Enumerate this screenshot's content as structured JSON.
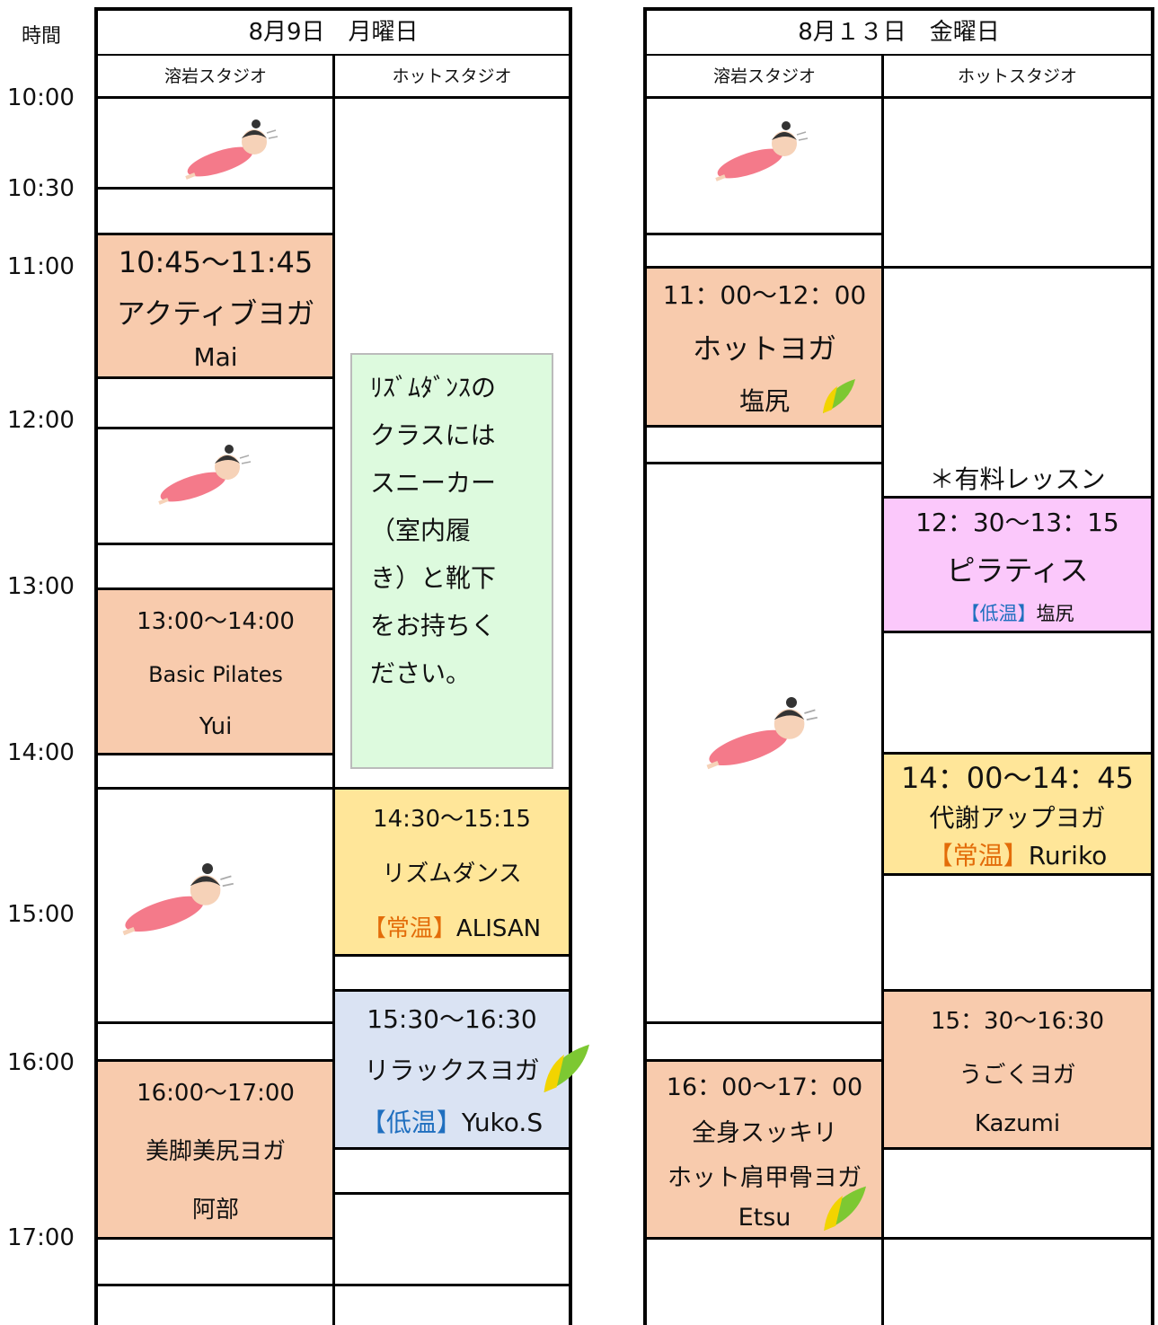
{
  "time_header": "時間",
  "times": [
    "10:00",
    "10:30",
    "11:00",
    "12:00",
    "13:00",
    "14:00",
    "15:00",
    "16:00",
    "17:00"
  ],
  "days": [
    {
      "title": "8月9日　月曜日",
      "studios": [
        "溶岩スタジオ",
        "ホットスタジオ"
      ],
      "lava": [
        {
          "time": "10:45～11:45",
          "name": "アクティブヨガ",
          "teacher": "Mai"
        },
        {
          "time": "13:00～14:00",
          "name": "Basic Pilates",
          "teacher": "Yui"
        },
        {
          "time": "16:00～17:00",
          "name": "美脚美尻ヨガ",
          "teacher": "阿部"
        }
      ],
      "hot": [
        {
          "time": "14:30～15:15",
          "name": "リズムダンス",
          "tag": "【常温】",
          "teacher": "ALISAN"
        },
        {
          "time": "15:30～16:30",
          "name": "リラックスヨガ",
          "tag": "【低温】",
          "teacher": "Yuko.S"
        }
      ],
      "note": [
        "ﾘｽﾞﾑﾀﾞﾝｽの",
        "クラスには",
        "スニーカー",
        "（室内履",
        "き）と靴下",
        "をお持ちく",
        "ださい。"
      ]
    },
    {
      "title": "8月１３日　金曜日",
      "studios": [
        "溶岩スタジオ",
        "ホットスタジオ"
      ],
      "lava": [
        {
          "time": "11：00～12：00",
          "name": "ホットヨガ",
          "teacher": "塩尻"
        },
        {
          "time": "16：00～17：00",
          "name": "全身スッキリ",
          "name2": "ホット肩甲骨ヨガ",
          "teacher": "Etsu"
        }
      ],
      "notice": "＊有料レッスン",
      "hot": [
        {
          "time": "12：30～13：15",
          "name": "ピラティス",
          "tag": "【低温】",
          "teacher": "塩尻"
        },
        {
          "time": "14：00～14：45",
          "name": "代謝アップヨガ",
          "tag": "【常温】",
          "teacher": "Ruriko"
        },
        {
          "time": "15：30～16:30",
          "name": "うごくヨガ",
          "teacher": "Kazumi"
        }
      ]
    }
  ]
}
